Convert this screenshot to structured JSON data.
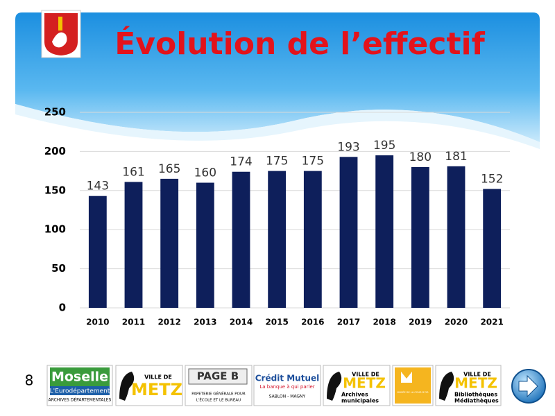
{
  "chart_data": {
    "type": "bar",
    "title": "Évolution de l’effectif",
    "categories": [
      "2010",
      "2011",
      "2012",
      "2013",
      "2014",
      "2015",
      "2016",
      "2017",
      "2018",
      "2019",
      "2020",
      "2021"
    ],
    "values": [
      143,
      161,
      165,
      160,
      174,
      175,
      175,
      193,
      195,
      180,
      181,
      152
    ],
    "color": "#0e1f5b",
    "ylim": [
      0,
      250
    ],
    "yticks": [
      0,
      50,
      100,
      150,
      200,
      250
    ],
    "grid": true
  },
  "page_number": "8",
  "logos": [
    {
      "lines": [
        "Moselle",
        "L'Eurodépartement",
        "ARCHIVES DÉPARTEMENTALES"
      ]
    },
    {
      "lines": [
        "VILLE DE",
        "METZ"
      ]
    },
    {
      "lines": [
        "PAGE B",
        "PAPETERIE GÉNÉRALE POUR",
        "L'ÉCOLE ET LE BUREAU"
      ]
    },
    {
      "lines": [
        "Crédit Mutuel",
        "La banque à qui parler",
        "SABLON - MAGNY"
      ]
    },
    {
      "lines": [
        "VILLE DE",
        "METZ",
        "Archives",
        "municipales"
      ]
    },
    {
      "lines": [
        "MUSÉE DE LA COUR D'OR"
      ]
    },
    {
      "lines": [
        "VILLE DE",
        "METZ",
        "Bibliothèques",
        "Médiathèques"
      ]
    }
  ]
}
